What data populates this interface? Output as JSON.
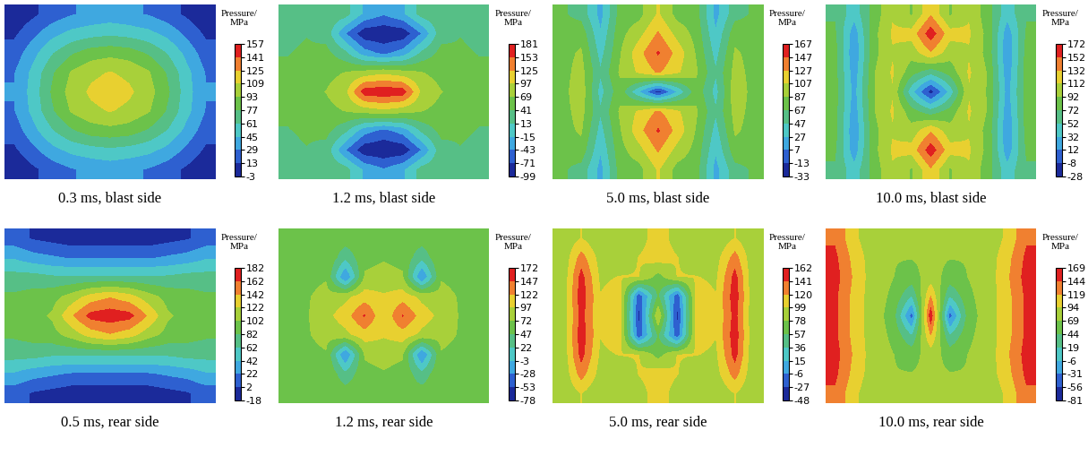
{
  "chart_data": [
    {
      "type": "heatmap",
      "title": "0.3 ms, blast side",
      "colorbar_label": "Pressure/\nMPa",
      "tick_labels": false,
      "colorbar_range": [
        -3,
        157
      ],
      "colorbar_ticks": [
        -3,
        13,
        29,
        45,
        61,
        77,
        93,
        109,
        125,
        141,
        157
      ],
      "cells": [
        [
          0,
          10,
          20,
          28,
          32,
          35,
          32,
          28,
          20,
          10,
          0
        ],
        [
          10,
          25,
          40,
          50,
          55,
          58,
          55,
          50,
          40,
          25,
          10
        ],
        [
          20,
          40,
          60,
          75,
          85,
          88,
          85,
          75,
          60,
          40,
          20
        ],
        [
          28,
          50,
          75,
          95,
          105,
          110,
          105,
          95,
          75,
          50,
          28
        ],
        [
          30,
          52,
          80,
          100,
          112,
          118,
          112,
          100,
          80,
          52,
          30
        ],
        [
          28,
          50,
          75,
          95,
          105,
          110,
          105,
          95,
          75,
          50,
          28
        ],
        [
          20,
          40,
          60,
          75,
          85,
          88,
          85,
          75,
          60,
          40,
          20
        ],
        [
          10,
          25,
          40,
          50,
          55,
          58,
          55,
          50,
          40,
          25,
          10
        ],
        [
          0,
          10,
          20,
          28,
          32,
          35,
          32,
          28,
          20,
          10,
          0
        ]
      ]
    },
    {
      "type": "heatmap",
      "title": "1.2 ms, blast side",
      "colorbar_label": "Pressure/\nMPa",
      "tick_labels": false,
      "colorbar_range": [
        -99,
        181
      ],
      "colorbar_ticks": [
        -99,
        -71,
        -43,
        -15,
        13,
        41,
        69,
        97,
        125,
        153,
        181
      ],
      "cells": [
        [
          30,
          35,
          35,
          25,
          -20,
          -40,
          -20,
          25,
          35,
          35,
          30
        ],
        [
          35,
          40,
          30,
          -40,
          -90,
          -95,
          -90,
          -40,
          30,
          40,
          35
        ],
        [
          40,
          45,
          50,
          20,
          -30,
          -50,
          -30,
          20,
          50,
          45,
          40
        ],
        [
          45,
          55,
          60,
          70,
          80,
          90,
          80,
          70,
          60,
          55,
          45
        ],
        [
          50,
          60,
          70,
          90,
          170,
          175,
          170,
          90,
          70,
          60,
          50
        ],
        [
          45,
          55,
          60,
          70,
          80,
          90,
          80,
          70,
          60,
          55,
          45
        ],
        [
          40,
          45,
          50,
          20,
          -30,
          -50,
          -30,
          20,
          50,
          45,
          40
        ],
        [
          35,
          40,
          30,
          -40,
          -90,
          -95,
          -90,
          -40,
          30,
          40,
          35
        ],
        [
          30,
          35,
          35,
          25,
          -20,
          -40,
          -20,
          25,
          35,
          35,
          30
        ]
      ]
    },
    {
      "type": "heatmap",
      "title": "5.0 ms, blast side",
      "colorbar_label": "Pressure/\nMPa",
      "tick_labels": false,
      "colorbar_range": [
        -33,
        167
      ],
      "colorbar_ticks": [
        -33,
        -13,
        7,
        27,
        47,
        67,
        87,
        107,
        127,
        147,
        167
      ],
      "cells": [
        [
          70,
          60,
          20,
          75,
          80,
          110,
          80,
          75,
          20,
          60,
          70
        ],
        [
          75,
          80,
          30,
          80,
          100,
          130,
          100,
          80,
          30,
          80,
          75
        ],
        [
          80,
          90,
          40,
          85,
          120,
          150,
          120,
          85,
          40,
          90,
          80
        ],
        [
          80,
          95,
          50,
          90,
          110,
          130,
          110,
          90,
          50,
          95,
          80
        ],
        [
          80,
          100,
          40,
          80,
          30,
          -20,
          30,
          80,
          40,
          100,
          80
        ],
        [
          80,
          95,
          50,
          90,
          110,
          130,
          110,
          90,
          50,
          95,
          80
        ],
        [
          80,
          90,
          40,
          85,
          120,
          150,
          120,
          85,
          40,
          90,
          80
        ],
        [
          75,
          80,
          30,
          80,
          100,
          130,
          100,
          80,
          30,
          80,
          75
        ],
        [
          70,
          60,
          20,
          75,
          80,
          110,
          80,
          75,
          20,
          60,
          70
        ]
      ]
    },
    {
      "type": "heatmap",
      "title": "10.0 ms, blast side",
      "colorbar_label": "Pressure/\nMPa",
      "tick_labels": false,
      "colorbar_range": [
        -28,
        172
      ],
      "colorbar_ticks": [
        -28,
        -8,
        12,
        32,
        52,
        72,
        92,
        112,
        132,
        152,
        172
      ],
      "cells": [
        [
          70,
          40,
          80,
          110,
          90,
          130,
          90,
          110,
          80,
          40,
          70
        ],
        [
          75,
          20,
          85,
          115,
          120,
          165,
          120,
          115,
          85,
          20,
          75
        ],
        [
          80,
          15,
          85,
          110,
          100,
          130,
          100,
          110,
          85,
          15,
          80
        ],
        [
          80,
          20,
          90,
          115,
          80,
          60,
          80,
          115,
          90,
          20,
          80
        ],
        [
          80,
          25,
          90,
          110,
          40,
          -15,
          40,
          110,
          90,
          25,
          80
        ],
        [
          80,
          20,
          90,
          115,
          80,
          60,
          80,
          115,
          90,
          20,
          80
        ],
        [
          80,
          15,
          85,
          110,
          100,
          130,
          100,
          110,
          85,
          15,
          80
        ],
        [
          75,
          20,
          85,
          115,
          120,
          165,
          120,
          115,
          85,
          20,
          75
        ],
        [
          70,
          40,
          80,
          110,
          90,
          130,
          90,
          110,
          80,
          40,
          70
        ]
      ]
    },
    {
      "type": "heatmap",
      "title": "0.5 ms, rear side",
      "colorbar_label": "Pressure/\nMPa",
      "tick_labels": false,
      "colorbar_range": [
        -18,
        182
      ],
      "colorbar_ticks": [
        -18,
        2,
        22,
        42,
        62,
        82,
        102,
        122,
        142,
        162,
        182
      ],
      "cells": [
        [
          10,
          0,
          -5,
          -10,
          -10,
          -10,
          -10,
          -10,
          -5,
          0,
          10
        ],
        [
          40,
          30,
          25,
          20,
          20,
          20,
          20,
          20,
          25,
          30,
          40
        ],
        [
          70,
          70,
          65,
          65,
          65,
          65,
          65,
          65,
          65,
          70,
          70
        ],
        [
          85,
          90,
          95,
          110,
          130,
          140,
          130,
          110,
          95,
          90,
          85
        ],
        [
          90,
          95,
          105,
          140,
          170,
          175,
          170,
          140,
          105,
          95,
          90
        ],
        [
          85,
          90,
          95,
          110,
          130,
          140,
          130,
          110,
          95,
          90,
          85
        ],
        [
          70,
          70,
          65,
          65,
          65,
          65,
          65,
          65,
          65,
          70,
          70
        ],
        [
          40,
          30,
          25,
          20,
          20,
          20,
          20,
          20,
          25,
          30,
          40
        ],
        [
          10,
          0,
          -5,
          -10,
          -10,
          -10,
          -10,
          -10,
          -5,
          0,
          10
        ]
      ]
    },
    {
      "type": "heatmap",
      "title": "1.2 ms, rear side",
      "colorbar_label": "Pressure/\nMPa",
      "tick_labels": false,
      "colorbar_range": [
        -78,
        172
      ],
      "colorbar_ticks": [
        -78,
        -53,
        -28,
        -3,
        22,
        47,
        72,
        97,
        122,
        147,
        172
      ],
      "cells": [
        [
          55,
          60,
          65,
          60,
          60,
          60,
          60,
          60,
          65,
          60,
          55
        ],
        [
          60,
          65,
          70,
          30,
          65,
          70,
          65,
          30,
          70,
          65,
          60
        ],
        [
          60,
          65,
          70,
          -30,
          75,
          80,
          75,
          -30,
          70,
          65,
          60
        ],
        [
          60,
          70,
          80,
          90,
          110,
          100,
          110,
          90,
          80,
          70,
          60
        ],
        [
          60,
          70,
          90,
          110,
          150,
          100,
          150,
          110,
          90,
          70,
          60
        ],
        [
          60,
          70,
          80,
          90,
          110,
          100,
          110,
          90,
          80,
          70,
          60
        ],
        [
          60,
          65,
          70,
          -30,
          75,
          80,
          75,
          -30,
          70,
          65,
          60
        ],
        [
          60,
          65,
          70,
          30,
          65,
          70,
          65,
          30,
          70,
          65,
          60
        ],
        [
          55,
          60,
          65,
          60,
          60,
          60,
          60,
          60,
          65,
          60,
          55
        ]
      ]
    },
    {
      "type": "heatmap",
      "title": "5.0 ms, rear side",
      "colorbar_label": "Pressure/\nMPa",
      "tick_labels": false,
      "colorbar_range": [
        -48,
        162
      ],
      "colorbar_ticks": [
        -48,
        -27,
        -6,
        15,
        36,
        57,
        78,
        99,
        120,
        141,
        162
      ],
      "cells": [
        [
          80,
          100,
          80,
          80,
          90,
          110,
          90,
          80,
          80,
          100,
          80
        ],
        [
          80,
          130,
          90,
          85,
          100,
          110,
          100,
          85,
          90,
          130,
          80
        ],
        [
          80,
          150,
          95,
          100,
          100,
          70,
          100,
          100,
          95,
          150,
          80
        ],
        [
          80,
          155,
          100,
          110,
          -20,
          60,
          -20,
          110,
          100,
          155,
          80
        ],
        [
          80,
          150,
          100,
          110,
          -30,
          100,
          -30,
          110,
          100,
          150,
          80
        ],
        [
          80,
          155,
          100,
          110,
          -20,
          60,
          -20,
          110,
          100,
          155,
          80
        ],
        [
          80,
          150,
          95,
          100,
          100,
          70,
          100,
          100,
          95,
          150,
          80
        ],
        [
          80,
          130,
          90,
          85,
          100,
          110,
          100,
          85,
          90,
          130,
          80
        ],
        [
          80,
          100,
          80,
          80,
          90,
          110,
          90,
          80,
          80,
          100,
          80
        ]
      ]
    },
    {
      "type": "heatmap",
      "title": "10.0 ms, rear side",
      "colorbar_label": "Pressure/\nMPa",
      "tick_labels": false,
      "colorbar_range": [
        -81,
        169
      ],
      "colorbar_ticks": [
        -81,
        -56,
        -31,
        -6,
        19,
        44,
        69,
        94,
        119,
        144,
        169
      ],
      "cells": [
        [
          140,
          100,
          75,
          70,
          70,
          70,
          70,
          70,
          75,
          100,
          140
        ],
        [
          150,
          110,
          80,
          70,
          70,
          75,
          70,
          70,
          80,
          110,
          150
        ],
        [
          155,
          115,
          80,
          70,
          60,
          80,
          60,
          70,
          80,
          115,
          155
        ],
        [
          150,
          110,
          80,
          65,
          20,
          120,
          20,
          65,
          80,
          110,
          150
        ],
        [
          150,
          110,
          80,
          60,
          -40,
          165,
          -40,
          60,
          80,
          110,
          150
        ],
        [
          150,
          110,
          80,
          65,
          20,
          120,
          20,
          65,
          80,
          110,
          150
        ],
        [
          155,
          115,
          80,
          70,
          60,
          80,
          60,
          70,
          80,
          115,
          155
        ],
        [
          150,
          110,
          80,
          70,
          70,
          75,
          70,
          70,
          80,
          110,
          150
        ],
        [
          140,
          100,
          75,
          70,
          70,
          70,
          70,
          70,
          75,
          100,
          140
        ]
      ]
    }
  ]
}
